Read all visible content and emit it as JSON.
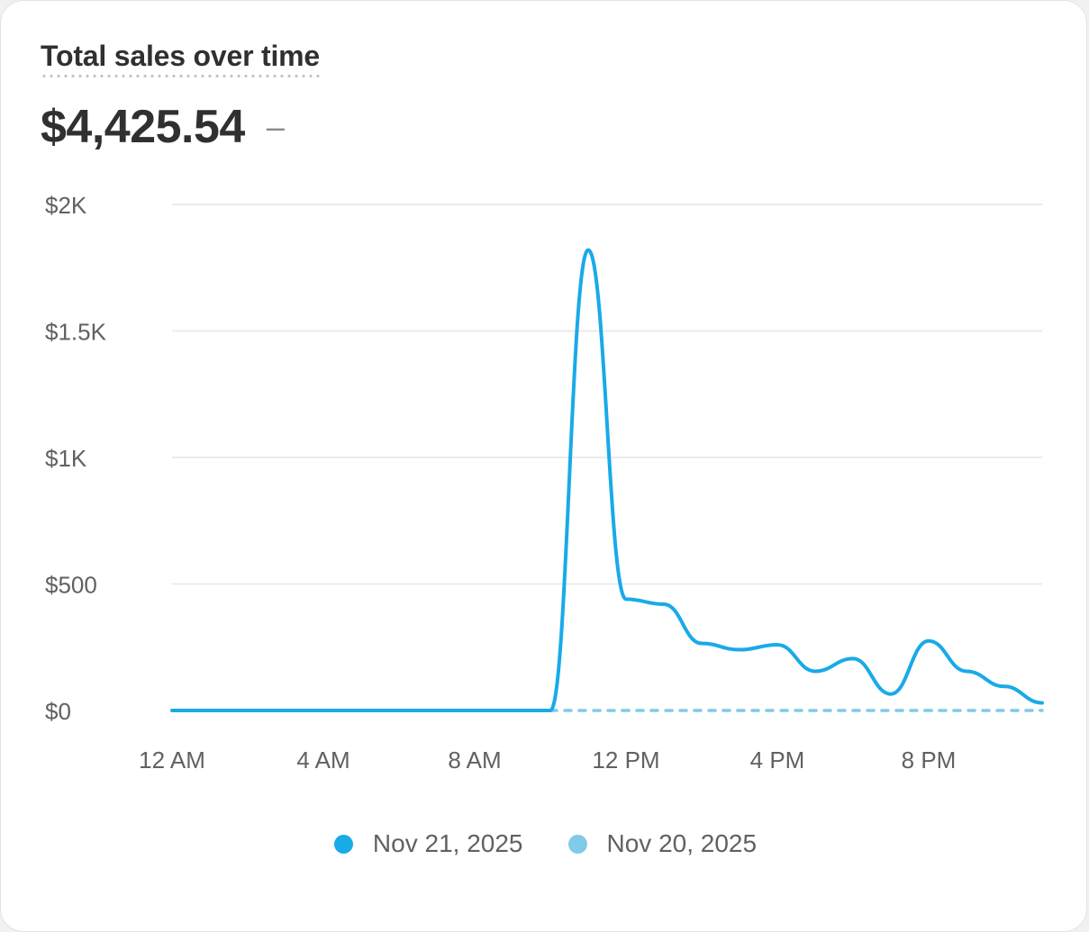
{
  "card": {
    "title": "Total sales over time",
    "total": "$4,425.54",
    "change": "–"
  },
  "colors": {
    "current": "#19aae8",
    "previous": "#7fcbe8",
    "grid": "#ebebeb",
    "axis_text": "#616161"
  },
  "chart_data": {
    "type": "line",
    "title": "Total sales over time",
    "xlabel": "",
    "ylabel": "",
    "x_ticks": [
      "12 AM",
      "4 AM",
      "8 AM",
      "12 PM",
      "4 PM",
      "8 PM"
    ],
    "y_ticks": [
      "$0",
      "$500",
      "$1K",
      "$1.5K",
      "$2K"
    ],
    "ylim": [
      0,
      2000
    ],
    "xlim_hours": [
      0,
      23
    ],
    "grid": true,
    "legend_position": "bottom",
    "series": [
      {
        "name": "Nov 21, 2025",
        "style": "solid",
        "points": [
          [
            0,
            0
          ],
          [
            1,
            0
          ],
          [
            2,
            0
          ],
          [
            3,
            0
          ],
          [
            4,
            0
          ],
          [
            5,
            0
          ],
          [
            6,
            0
          ],
          [
            7,
            0
          ],
          [
            8,
            0
          ],
          [
            9,
            0
          ],
          [
            10,
            0
          ],
          [
            11,
            1820
          ],
          [
            12,
            440
          ],
          [
            13,
            420
          ],
          [
            14,
            265
          ],
          [
            15,
            240
          ],
          [
            16,
            260
          ],
          [
            17,
            155
          ],
          [
            18,
            205
          ],
          [
            19,
            65
          ],
          [
            20,
            275
          ],
          [
            21,
            155
          ],
          [
            22,
            95
          ],
          [
            23,
            30
          ]
        ]
      },
      {
        "name": "Nov 20, 2025",
        "style": "dotted",
        "points": [
          [
            10,
            0
          ],
          [
            11,
            0
          ],
          [
            12,
            0
          ],
          [
            13,
            0
          ],
          [
            14,
            0
          ],
          [
            15,
            0
          ],
          [
            16,
            0
          ],
          [
            17,
            0
          ],
          [
            18,
            0
          ],
          [
            19,
            0
          ],
          [
            20,
            0
          ],
          [
            21,
            0
          ],
          [
            22,
            0
          ],
          [
            23,
            0
          ]
        ]
      }
    ]
  }
}
